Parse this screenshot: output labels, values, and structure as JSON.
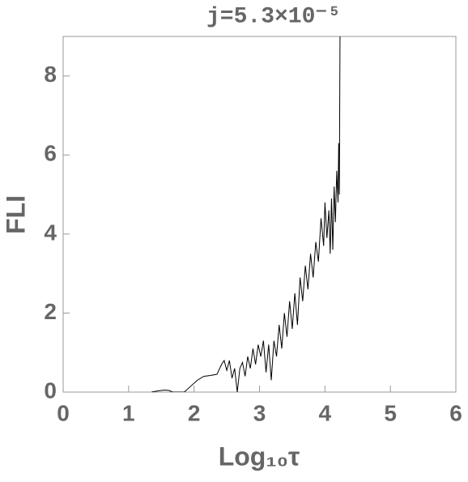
{
  "chart_data": {
    "type": "line",
    "title": "j=5.3×10⁻⁵",
    "xlabel": "Log₁₀τ",
    "ylabel": "FLI",
    "x": [
      1.35,
      1.45,
      1.55,
      1.62,
      1.67,
      1.85,
      1.95,
      2.05,
      2.15,
      2.25,
      2.35,
      2.42,
      2.46,
      2.5,
      2.54,
      2.58,
      2.62,
      2.66,
      2.7,
      2.74,
      2.78,
      2.82,
      2.86,
      2.9,
      2.94,
      2.98,
      3.02,
      3.06,
      3.1,
      3.14,
      3.18,
      3.22,
      3.26,
      3.3,
      3.34,
      3.38,
      3.42,
      3.46,
      3.5,
      3.54,
      3.58,
      3.62,
      3.66,
      3.7,
      3.74,
      3.78,
      3.82,
      3.86,
      3.9,
      3.94,
      3.98,
      4.0,
      4.03,
      4.06,
      4.08,
      4.1,
      4.12,
      4.14,
      4.16,
      4.18,
      4.2,
      4.21,
      4.22,
      4.23
    ],
    "series": [
      {
        "name": "FLI",
        "color": "#000000",
        "values": [
          0,
          0.03,
          0.05,
          0.04,
          0,
          0,
          0.15,
          0.3,
          0.4,
          0.42,
          0.45,
          0.7,
          0.8,
          0.55,
          0.8,
          0.35,
          0.6,
          0,
          0.6,
          0.75,
          0.4,
          0.9,
          0.6,
          1.1,
          0.7,
          1.2,
          0.9,
          1.3,
          0.5,
          1.2,
          0.3,
          1.3,
          0.9,
          1.7,
          1.1,
          2.0,
          1.4,
          2.3,
          1.6,
          2.5,
          1.7,
          2.9,
          2.3,
          3.2,
          2.6,
          3.5,
          2.9,
          3.8,
          3.3,
          4.4,
          3.7,
          4.8,
          3.9,
          4.6,
          3.5,
          4.9,
          3.6,
          5.2,
          4.3,
          5.6,
          4.8,
          6.3,
          5.0,
          9.0
        ]
      }
    ],
    "xlim": [
      0,
      6
    ],
    "xticks": [
      0,
      1,
      2,
      3,
      4,
      5,
      6
    ],
    "ylim": [
      0,
      9
    ],
    "yticks": [
      0,
      2,
      4,
      6,
      8
    ]
  }
}
